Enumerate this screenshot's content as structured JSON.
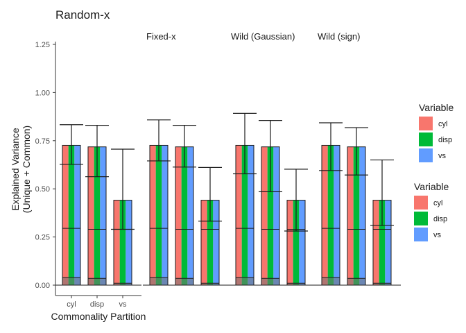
{
  "chart_data": {
    "type": "bar",
    "title": "Random-x",
    "xlabel": "Commonality Partition",
    "ylabel": [
      "Explained Variance",
      "(Unique + Common)"
    ],
    "ylim": [
      0,
      1.25
    ],
    "yticks": [
      "0.00",
      "0.25",
      "0.50",
      "0.75",
      "1.00",
      "1.25"
    ],
    "categories": [
      "cyl",
      "disp",
      "vs"
    ],
    "grid": false,
    "legend_position": "right",
    "panels": [
      {
        "name": "Random-x",
        "bars": [
          {
            "category": "cyl",
            "total": 0.726,
            "segments": [
              0.04,
              0.295
            ],
            "estimate": 0.627,
            "upper": 0.833
          },
          {
            "category": "disp",
            "total": 0.718,
            "segments": [
              0.035,
              0.29
            ],
            "estimate": 0.563,
            "upper": 0.83
          },
          {
            "category": "vs",
            "total": 0.441,
            "segments": [
              0.01,
              0.29
            ],
            "estimate": 0.29,
            "upper": 0.706
          }
        ]
      },
      {
        "name": "Fixed-x",
        "bars": [
          {
            "category": "cyl",
            "total": 0.726,
            "segments": [
              0.04,
              0.295
            ],
            "estimate": 0.645,
            "upper": 0.858
          },
          {
            "category": "disp",
            "total": 0.718,
            "segments": [
              0.035,
              0.29
            ],
            "estimate": 0.613,
            "upper": 0.83
          },
          {
            "category": "vs",
            "total": 0.441,
            "segments": [
              0.01,
              0.29
            ],
            "estimate": 0.332,
            "upper": 0.611
          }
        ]
      },
      {
        "name": "Wild (Gaussian)",
        "bars": [
          {
            "category": "cyl",
            "total": 0.726,
            "segments": [
              0.04,
              0.295
            ],
            "estimate": 0.578,
            "upper": 0.892
          },
          {
            "category": "disp",
            "total": 0.718,
            "segments": [
              0.035,
              0.29
            ],
            "estimate": 0.485,
            "upper": 0.855
          },
          {
            "category": "vs",
            "total": 0.441,
            "segments": [
              0.01,
              0.29
            ],
            "estimate": 0.281,
            "upper": 0.602
          }
        ]
      },
      {
        "name": "Wild (sign)",
        "bars": [
          {
            "category": "cyl",
            "total": 0.726,
            "segments": [
              0.04,
              0.295
            ],
            "estimate": 0.595,
            "upper": 0.843
          },
          {
            "category": "disp",
            "total": 0.718,
            "segments": [
              0.035,
              0.29
            ],
            "estimate": 0.572,
            "upper": 0.818
          },
          {
            "category": "vs",
            "total": 0.441,
            "segments": [
              0.01,
              0.29
            ],
            "estimate": 0.31,
            "upper": 0.65
          }
        ]
      }
    ],
    "legends": [
      {
        "title": "Variable",
        "items": [
          "cyl",
          "disp",
          "vs"
        ]
      },
      {
        "title": "Variable",
        "items": [
          "cyl",
          "disp",
          "vs"
        ]
      }
    ],
    "colors": {
      "cyl": "#F8766D",
      "disp": "#00BA38",
      "vs": "#619CFF",
      "dark_segment": "#757575"
    }
  }
}
